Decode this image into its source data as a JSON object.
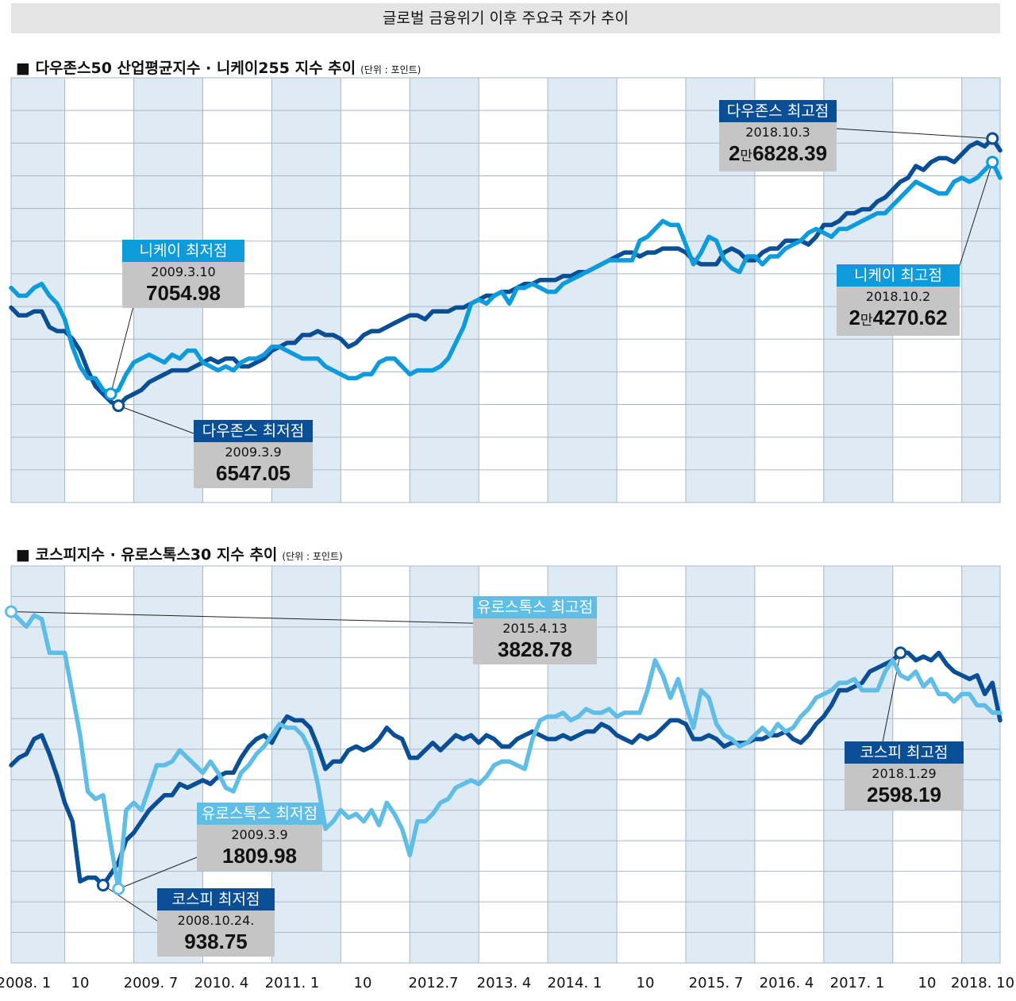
{
  "title": "글로벌 금융위기 이후 주요국 주가 추이",
  "colors": {
    "dark": "#0a4e96",
    "light": "#0e9bdb",
    "pale": "#5fbde6",
    "grid": "#aab8c4",
    "shade": "#deebf5"
  },
  "panel1": {
    "title": "■ 다우존스50 산업평균지수 · 니케이255 지수 추이",
    "unit": "(단위 : 포인트)",
    "callouts": {
      "dow_high": {
        "label": "다우존스 최고점",
        "date": "2018.10.3",
        "value_man": "2",
        "value_unit": "만",
        "value_rest": "6828.39"
      },
      "nikkei_high": {
        "label": "니케이 최고점",
        "date": "2018.10.2",
        "value_man": "2",
        "value_unit": "만",
        "value_rest": "4270.62"
      },
      "nikkei_low": {
        "label": "니케이 최저점",
        "date": "2009.3.10",
        "value": "7054.98"
      },
      "dow_low": {
        "label": "다우존스 최저점",
        "date": "2009.3.9",
        "value": "6547.05"
      }
    }
  },
  "panel2": {
    "title": "■ 코스피지수 · 유로스톡스30 지수 추이",
    "unit": "(단위 : 포인트)",
    "callouts": {
      "euro_high": {
        "label": "유로스톡스 최고점",
        "date": "2015.4.13",
        "value": "3828.78"
      },
      "kospi_high": {
        "label": "코스피 최고점",
        "date": "2018.1.29",
        "value": "2598.19"
      },
      "euro_low": {
        "label": "유로스톡스 최저점",
        "date": "2009.3.9",
        "value": "1809.98"
      },
      "kospi_low": {
        "label": "코스피 최저점",
        "date": "2008.10.24.",
        "value": "938.75"
      }
    }
  },
  "x_axis": {
    "labels": [
      "2008. 1",
      "10",
      "2009. 7",
      "2010. 4",
      "2011. 1",
      "10",
      "2012.7",
      "2013. 4",
      "2014. 1",
      "10",
      "2015. 7",
      "2016. 4",
      "2017. 1",
      "10",
      "2018. 10"
    ]
  },
  "chart_data": [
    {
      "type": "line",
      "title": "다우존스50 산업평균지수 · 니케이255 지수 추이",
      "x_start": "2008.1",
      "x_end": "2018.10",
      "x_unit": "month index from 2008.1",
      "ylabel": "포인트 (normalized, axis unlabeled)",
      "ylim": [
        0,
        100
      ],
      "series": [
        {
          "name": "다우존스",
          "color": "dark",
          "x": [
            0,
            1,
            2,
            3,
            4,
            5,
            6,
            7,
            8,
            9,
            10,
            11,
            12,
            13,
            14,
            15,
            16,
            17,
            18,
            19,
            20,
            21,
            22,
            23,
            24,
            25,
            26,
            27,
            28,
            29,
            30,
            31,
            32,
            33,
            34,
            35,
            36,
            37,
            38,
            39,
            40,
            41,
            42,
            43,
            44,
            45,
            46,
            47,
            48,
            49,
            50,
            51,
            52,
            53,
            54,
            55,
            56,
            57,
            58,
            59,
            60,
            61,
            62,
            63,
            64,
            65,
            66,
            67,
            68,
            69,
            70,
            71,
            72,
            73,
            74,
            75,
            76,
            77,
            78,
            79,
            80,
            81,
            82,
            83,
            84,
            85,
            86,
            87,
            88,
            89,
            90,
            91,
            92,
            93,
            94,
            95,
            96,
            97,
            98,
            99,
            100,
            101,
            102,
            103,
            104,
            105,
            106,
            107,
            108,
            109,
            110,
            111,
            112,
            113,
            114,
            115,
            116,
            117,
            118,
            119,
            120,
            121,
            122,
            123,
            124,
            125,
            126,
            127,
            128,
            129
          ],
          "values": [
            47,
            45,
            45,
            46,
            46,
            42,
            41,
            41,
            39,
            36,
            31,
            27,
            25,
            23,
            22,
            24,
            25,
            26,
            28,
            29,
            30,
            31,
            31,
            31,
            32,
            33,
            34,
            33,
            34,
            34,
            32,
            32,
            33,
            34,
            36,
            37,
            38,
            38,
            40,
            40,
            41,
            40,
            40,
            39,
            37,
            38,
            40,
            41,
            41,
            42,
            43,
            44,
            45,
            45,
            44,
            46,
            46,
            46,
            47,
            47,
            48,
            49,
            50,
            50,
            51,
            51,
            52,
            53,
            53,
            54,
            54,
            54,
            55,
            55,
            56,
            56,
            57,
            58,
            59,
            60,
            61,
            61,
            60,
            61,
            61,
            62,
            62,
            62,
            61,
            59,
            58,
            58,
            58,
            61,
            62,
            61,
            59,
            59,
            61,
            62,
            62,
            64,
            64,
            64,
            63,
            65,
            68,
            68,
            69,
            71,
            71,
            72,
            72,
            74,
            75,
            77,
            79,
            80,
            83,
            82,
            84,
            85,
            85,
            84,
            86,
            88,
            89,
            88,
            90,
            87
          ]
        },
        {
          "name": "니케이",
          "color": "light",
          "x": [
            0,
            1,
            2,
            3,
            4,
            5,
            6,
            7,
            8,
            9,
            10,
            11,
            12,
            13,
            14,
            15,
            16,
            17,
            18,
            19,
            20,
            21,
            22,
            23,
            24,
            25,
            26,
            27,
            28,
            29,
            30,
            31,
            32,
            33,
            34,
            35,
            36,
            37,
            38,
            39,
            40,
            41,
            42,
            43,
            44,
            45,
            46,
            47,
            48,
            49,
            50,
            51,
            52,
            53,
            54,
            55,
            56,
            57,
            58,
            59,
            60,
            61,
            62,
            63,
            64,
            65,
            66,
            67,
            68,
            69,
            70,
            71,
            72,
            73,
            74,
            75,
            76,
            77,
            78,
            79,
            80,
            81,
            82,
            83,
            84,
            85,
            86,
            87,
            88,
            89,
            90,
            91,
            92,
            93,
            94,
            95,
            96,
            97,
            98,
            99,
            100,
            101,
            102,
            103,
            104,
            105,
            106,
            107,
            108,
            109,
            110,
            111,
            112,
            113,
            114,
            115,
            116,
            117,
            118,
            119,
            120,
            121,
            122,
            123,
            124,
            125,
            126,
            127,
            128,
            129
          ],
          "values": [
            52,
            50,
            50,
            52,
            53,
            50,
            48,
            44,
            37,
            32,
            29,
            29,
            26,
            25,
            26,
            30,
            33,
            34,
            35,
            34,
            33,
            35,
            34,
            36,
            36,
            33,
            32,
            31,
            32,
            31,
            33,
            34,
            34,
            35,
            37,
            37,
            36,
            35,
            34,
            34,
            34,
            32,
            31,
            30,
            29,
            29,
            30,
            30,
            33,
            34,
            34,
            32,
            30,
            31,
            31,
            31,
            32,
            34,
            38,
            42,
            48,
            49,
            48,
            50,
            51,
            48,
            52,
            52,
            53,
            52,
            51,
            51,
            53,
            54,
            55,
            56,
            57,
            58,
            59,
            59,
            59,
            59,
            64,
            65,
            67,
            69,
            68,
            68,
            63,
            58,
            61,
            65,
            64,
            59,
            57,
            56,
            60,
            60,
            58,
            60,
            60,
            62,
            63,
            64,
            66,
            67,
            66,
            65,
            67,
            67,
            68,
            69,
            70,
            71,
            71,
            73,
            75,
            77,
            79,
            78,
            77,
            76,
            76,
            79,
            80,
            79,
            80,
            82,
            84,
            80
          ]
        }
      ]
    },
    {
      "type": "line",
      "title": "코스피지수 · 유로스톡스30 지수 추이",
      "x_start": "2008.1",
      "x_end": "2018.10",
      "x_unit": "month index from 2008.1",
      "ylabel": "포인트 (normalized, axis unlabeled)",
      "ylim": [
        0,
        100
      ],
      "series": [
        {
          "name": "코스피",
          "color": "dark",
          "x": [
            0,
            1,
            2,
            3,
            4,
            5,
            6,
            7,
            8,
            9,
            10,
            11,
            12,
            13,
            14,
            15,
            16,
            17,
            18,
            19,
            20,
            21,
            22,
            23,
            24,
            25,
            26,
            27,
            28,
            29,
            30,
            31,
            32,
            33,
            34,
            35,
            36,
            37,
            38,
            39,
            40,
            41,
            42,
            43,
            44,
            45,
            46,
            47,
            48,
            49,
            50,
            51,
            52,
            53,
            54,
            55,
            56,
            57,
            58,
            59,
            60,
            61,
            62,
            63,
            64,
            65,
            66,
            67,
            68,
            69,
            70,
            71,
            72,
            73,
            74,
            75,
            76,
            77,
            78,
            79,
            80,
            81,
            82,
            83,
            84,
            85,
            86,
            87,
            88,
            89,
            90,
            91,
            92,
            93,
            94,
            95,
            96,
            97,
            98,
            99,
            100,
            101,
            102,
            103,
            104,
            105,
            106,
            107,
            108,
            109,
            110,
            111,
            112,
            113,
            114,
            115,
            116,
            117,
            118,
            119,
            120,
            121,
            122,
            123,
            124,
            125,
            126,
            127,
            128,
            129
          ],
          "values": [
            50,
            52,
            53,
            57,
            58,
            53,
            47,
            40,
            35,
            19,
            20,
            20,
            18,
            21,
            24,
            30,
            32,
            35,
            38,
            40,
            42,
            42,
            45,
            44,
            45,
            46,
            45,
            47,
            48,
            48,
            52,
            55,
            57,
            58,
            56,
            60,
            63,
            62,
            62,
            60,
            55,
            49,
            51,
            51,
            54,
            55,
            54,
            55,
            57,
            60,
            58,
            57,
            52,
            52,
            54,
            56,
            54,
            56,
            58,
            57,
            58,
            56,
            58,
            57,
            55,
            55,
            57,
            58,
            59,
            58,
            57,
            57,
            58,
            57,
            58,
            59,
            59,
            61,
            60,
            58,
            57,
            56,
            58,
            57,
            58,
            60,
            62,
            62,
            61,
            57,
            57,
            58,
            57,
            55,
            56,
            56,
            56,
            57,
            57,
            58,
            58,
            59,
            57,
            56,
            58,
            61,
            63,
            66,
            70,
            70,
            71,
            72,
            75,
            76,
            77,
            78,
            80,
            80,
            78,
            79,
            78,
            80,
            77,
            75,
            74,
            73,
            74,
            69,
            72,
            62
          ]
        },
        {
          "name": "유로스톡스",
          "color": "pale",
          "x": [
            0,
            1,
            2,
            3,
            4,
            5,
            6,
            7,
            8,
            9,
            10,
            11,
            12,
            13,
            14,
            15,
            16,
            17,
            18,
            19,
            20,
            21,
            22,
            23,
            24,
            25,
            26,
            27,
            28,
            29,
            30,
            31,
            32,
            33,
            34,
            35,
            36,
            37,
            38,
            39,
            40,
            41,
            42,
            43,
            44,
            45,
            46,
            47,
            48,
            49,
            50,
            51,
            52,
            53,
            54,
            55,
            56,
            57,
            58,
            59,
            60,
            61,
            62,
            63,
            64,
            65,
            66,
            67,
            68,
            69,
            70,
            71,
            72,
            73,
            74,
            75,
            76,
            77,
            78,
            79,
            80,
            81,
            82,
            83,
            84,
            85,
            86,
            87,
            88,
            89,
            90,
            91,
            92,
            93,
            94,
            95,
            96,
            97,
            98,
            99,
            100,
            101,
            102,
            103,
            104,
            105,
            106,
            107,
            108,
            109,
            110,
            111,
            112,
            113,
            114,
            115,
            116,
            117,
            118,
            119,
            120,
            121,
            122,
            123,
            124,
            125,
            126,
            127,
            128,
            129
          ],
          "values": [
            91,
            89,
            87,
            90,
            89,
            80,
            80,
            80,
            69,
            58,
            43,
            41,
            42,
            29,
            17,
            38,
            40,
            38,
            44,
            50,
            50,
            51,
            54,
            52,
            50,
            48,
            51,
            48,
            44,
            43,
            48,
            50,
            53,
            55,
            58,
            61,
            60,
            60,
            58,
            54,
            45,
            33,
            35,
            38,
            36,
            37,
            35,
            38,
            34,
            40,
            37,
            33,
            26,
            35,
            35,
            37,
            40,
            41,
            44,
            45,
            46,
            45,
            47,
            50,
            51,
            51,
            50,
            49,
            57,
            62,
            63,
            63,
            64,
            62,
            63,
            65,
            64,
            64,
            65,
            63,
            64,
            64,
            64,
            70,
            78,
            74,
            68,
            73,
            66,
            60,
            70,
            68,
            61,
            58,
            57,
            55,
            56,
            58,
            60,
            58,
            61,
            59,
            60,
            63,
            65,
            68,
            69,
            70,
            72,
            72,
            73,
            70,
            70,
            70,
            75,
            78,
            74,
            73,
            75,
            71,
            73,
            69,
            69,
            67,
            69,
            69,
            66,
            66,
            64,
            64
          ]
        }
      ]
    }
  ]
}
